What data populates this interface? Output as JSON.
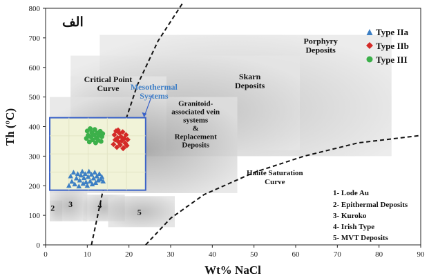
{
  "chart_data": {
    "type": "scatter",
    "title": "الف",
    "xlabel": "Wt% NaCl",
    "ylabel": "Th (ºC)",
    "xlim": [
      0,
      90
    ],
    "ylim": [
      0,
      800
    ],
    "xticks": [
      0,
      10,
      20,
      30,
      40,
      50,
      60,
      70,
      80,
      90
    ],
    "yticks": [
      0,
      100,
      200,
      300,
      400,
      500,
      600,
      700,
      800
    ],
    "grid": false,
    "legend_position": "top-right",
    "series": [
      {
        "name": "Type IIa",
        "marker": "triangle",
        "color": "#3d7fc4",
        "points": [
          [
            5.6,
            200
          ],
          [
            6.0,
            232
          ],
          [
            6.3,
            214
          ],
          [
            6.7,
            245
          ],
          [
            7.0,
            205
          ],
          [
            7.4,
            225
          ],
          [
            7.7,
            240
          ],
          [
            8.0,
            198
          ],
          [
            8.2,
            218
          ],
          [
            8.5,
            235
          ],
          [
            8.8,
            248
          ],
          [
            9.0,
            207
          ],
          [
            9.2,
            226
          ],
          [
            9.5,
            240
          ],
          [
            9.7,
            212
          ],
          [
            10.0,
            200
          ],
          [
            10.2,
            230
          ],
          [
            10.4,
            248
          ],
          [
            10.7,
            215
          ],
          [
            11.0,
            238
          ],
          [
            11.2,
            205
          ],
          [
            11.5,
            225
          ],
          [
            11.8,
            245
          ],
          [
            12.0,
            210
          ],
          [
            12.3,
            232
          ],
          [
            12.6,
            218
          ],
          [
            12.9,
            240
          ],
          [
            13.2,
            222
          ],
          [
            13.5,
            230
          ],
          [
            13.8,
            215
          ]
        ]
      },
      {
        "name": "Type IIb",
        "marker": "diamond",
        "color": "#d42a27",
        "points": [
          [
            16.3,
            340
          ],
          [
            16.5,
            372
          ],
          [
            16.7,
            355
          ],
          [
            16.9,
            385
          ],
          [
            17.1,
            330
          ],
          [
            17.3,
            362
          ],
          [
            17.5,
            348
          ],
          [
            17.7,
            378
          ],
          [
            17.9,
            338
          ],
          [
            18.1,
            366
          ],
          [
            18.3,
            352
          ],
          [
            18.5,
            382
          ],
          [
            18.7,
            328
          ],
          [
            18.9,
            360
          ],
          [
            19.1,
            344
          ],
          [
            19.3,
            372
          ],
          [
            19.5,
            336
          ],
          [
            19.7,
            356
          ],
          [
            17.4,
            388
          ],
          [
            18.6,
            326
          ]
        ]
      },
      {
        "name": "Type III",
        "marker": "circle",
        "color": "#3cb04a",
        "points": [
          [
            9.8,
            360
          ],
          [
            10.0,
            385
          ],
          [
            10.2,
            370
          ],
          [
            10.5,
            348
          ],
          [
            10.7,
            393
          ],
          [
            10.9,
            365
          ],
          [
            11.1,
            380
          ],
          [
            11.3,
            355
          ],
          [
            11.6,
            372
          ],
          [
            11.8,
            390
          ],
          [
            12.0,
            345
          ],
          [
            12.2,
            362
          ],
          [
            12.4,
            378
          ],
          [
            12.6,
            354
          ],
          [
            12.8,
            370
          ],
          [
            13.1,
            384
          ],
          [
            13.3,
            350
          ],
          [
            13.5,
            366
          ],
          [
            13.7,
            376
          ]
        ]
      }
    ],
    "regions": [
      {
        "name": "Porphyry Deposits",
        "label_lines": [
          "Porphyry",
          "Deposits"
        ],
        "x": [
          13,
          83
        ],
        "y": [
          300,
          710
        ],
        "label_at": [
          66,
          680
        ]
      },
      {
        "name": "Skarn Deposits",
        "label_lines": [
          "Skarn",
          "Deposits"
        ],
        "x": [
          6,
          61
        ],
        "y": [
          320,
          640
        ],
        "label_at": [
          49,
          560
        ]
      },
      {
        "name": "Critical Point Curve",
        "label_lines": [
          "Critical Point",
          "Curve"
        ],
        "x": [
          6,
          29
        ],
        "y": [
          300,
          570
        ],
        "label_at": [
          15,
          550
        ]
      },
      {
        "name": "Granitoid-associated vein systems & Replacement Deposits",
        "label_lines": [
          "Granitoid-",
          "associated vein",
          "systems",
          "&",
          "Replacement",
          "Deposits"
        ],
        "x": [
          1,
          46
        ],
        "y": [
          175,
          500
        ],
        "label_at": [
          36,
          470
        ]
      },
      {
        "name": "Mesothermal Systems",
        "label_lines": [
          "Mesothermal",
          "Systems"
        ],
        "x": [
          1,
          24
        ],
        "y": [
          185,
          430
        ],
        "label_at": [
          26,
          525
        ]
      },
      {
        "name": "2",
        "label_lines": [
          "2"
        ],
        "x": [
          1,
          4
        ],
        "y": [
          80,
          150
        ],
        "label_at": [
          1.2,
          115
        ]
      },
      {
        "name": "3",
        "label_lines": [
          "3"
        ],
        "x": [
          1,
          10
        ],
        "y": [
          80,
          185
        ],
        "label_at": [
          5.5,
          128
        ]
      },
      {
        "name": "4",
        "label_lines": [
          "4"
        ],
        "x": [
          9,
          19
        ],
        "y": [
          80,
          170
        ],
        "label_at": [
          12.5,
          125
        ]
      },
      {
        "name": "5",
        "label_lines": [
          "5"
        ],
        "x": [
          15,
          31
        ],
        "y": [
          60,
          165
        ],
        "label_at": [
          22,
          102
        ]
      }
    ],
    "annotations": [
      {
        "text": "Halite Saturation",
        "at": [
          55,
          235
        ]
      },
      {
        "text": "Curve",
        "at": [
          55,
          205
        ]
      }
    ],
    "deposit_list": [
      "1- Lode Au",
      "2- Epithermal Deposits",
      "3- Kuroko",
      "4- Irish Type",
      "5- MVT Deposits"
    ]
  },
  "colors": {
    "mesothermal_box": "#3a62c8",
    "mesothermal_label": "#3f7fc6",
    "mesothermal_fill": "#f1f3d8",
    "text": "#111111"
  }
}
